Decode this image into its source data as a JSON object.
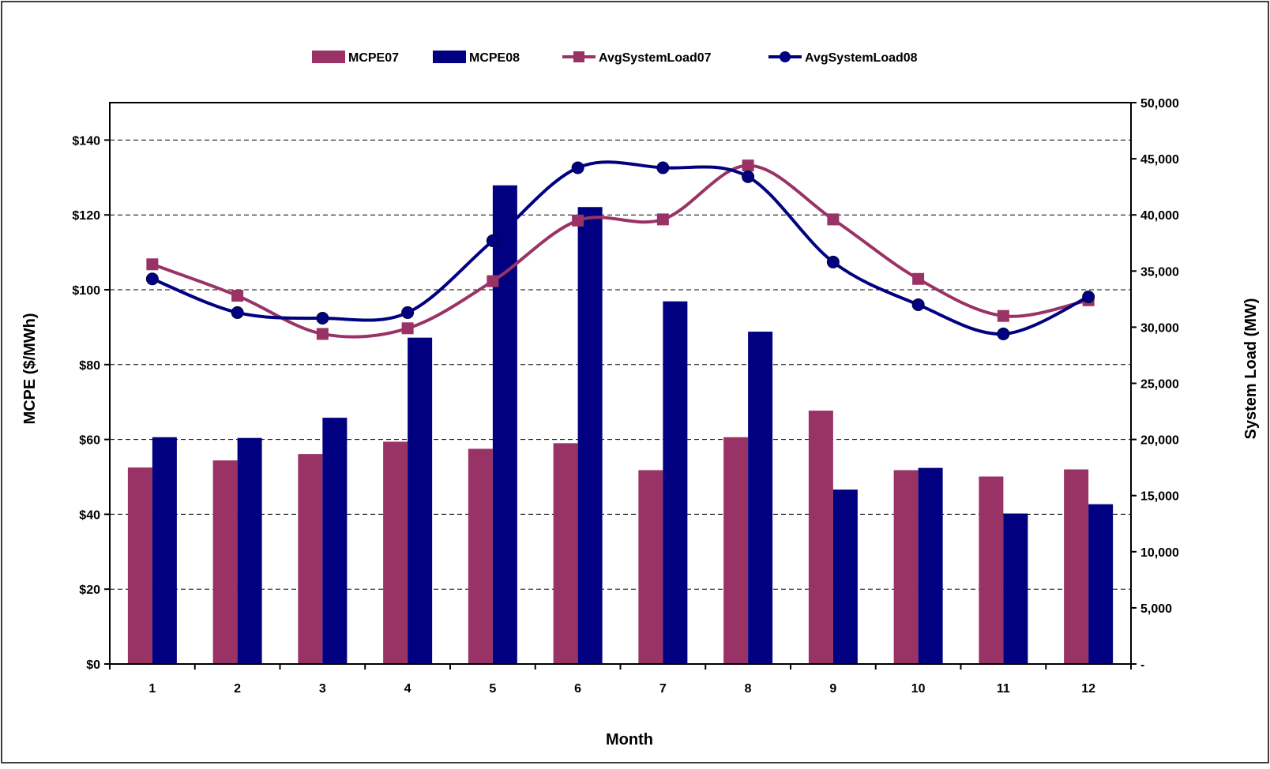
{
  "chart_data": {
    "type": "bar",
    "title": "",
    "xlabel": "Month",
    "ylabel": "MCPE ($/MWh)",
    "y2label": "System Load (MW)",
    "categories": [
      "1",
      "2",
      "3",
      "4",
      "5",
      "6",
      "7",
      "8",
      "9",
      "10",
      "11",
      "12"
    ],
    "ylim": [
      0,
      150
    ],
    "y2lim": [
      0,
      50000
    ],
    "yticks": [
      {
        "value": 0,
        "label": "$0"
      },
      {
        "value": 20,
        "label": "$20"
      },
      {
        "value": 40,
        "label": "$40"
      },
      {
        "value": 60,
        "label": "$60"
      },
      {
        "value": 80,
        "label": "$80"
      },
      {
        "value": 100,
        "label": "$100"
      },
      {
        "value": 120,
        "label": "$120"
      },
      {
        "value": 140,
        "label": "$140"
      }
    ],
    "y2ticks": [
      {
        "value": 0,
        "label": "-"
      },
      {
        "value": 5000,
        "label": "5,000"
      },
      {
        "value": 10000,
        "label": "10,000"
      },
      {
        "value": 15000,
        "label": "15,000"
      },
      {
        "value": 20000,
        "label": "20,000"
      },
      {
        "value": 25000,
        "label": "25,000"
      },
      {
        "value": 30000,
        "label": "30,000"
      },
      {
        "value": 35000,
        "label": "35,000"
      },
      {
        "value": 40000,
        "label": "40,000"
      },
      {
        "value": 45000,
        "label": "45,000"
      },
      {
        "value": 50000,
        "label": "50,000"
      }
    ],
    "grid": true,
    "legend_position": "top",
    "bar_series": [
      {
        "name": "MCPE07",
        "color": "#993366",
        "values": [
          52.5,
          54.4,
          56.1,
          59.4,
          57.5,
          59.0,
          51.8,
          60.6,
          67.7,
          51.8,
          50.1,
          52.0
        ]
      },
      {
        "name": "MCPE08",
        "color": "#000080",
        "values": [
          60.6,
          60.4,
          65.8,
          87.2,
          127.9,
          122.1,
          96.9,
          88.8,
          46.6,
          52.4,
          40.2,
          42.7
        ]
      }
    ],
    "line_series": [
      {
        "name": "AvgSystemLoad07",
        "color": "#993366",
        "marker": "square",
        "values": [
          35600,
          32800,
          29400,
          29900,
          34100,
          39500,
          39600,
          44400,
          39600,
          34300,
          31000,
          32400
        ]
      },
      {
        "name": "AvgSystemLoad08",
        "color": "#000080",
        "marker": "circle",
        "values": [
          34300,
          31300,
          30800,
          31300,
          37700,
          44200,
          44200,
          43400,
          35800,
          32000,
          29400,
          32700
        ]
      }
    ]
  }
}
